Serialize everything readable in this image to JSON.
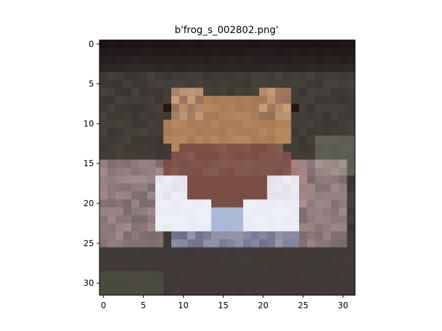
{
  "figure": {
    "title": "b'frog_s_002802.png'"
  },
  "image": {
    "description_name": "frog-photo",
    "grid_size": [
      32,
      32
    ],
    "x_ticks": [
      "0",
      "5",
      "10",
      "15",
      "20",
      "25",
      "30"
    ],
    "y_ticks": [
      "0",
      "5",
      "10",
      "15",
      "20",
      "25",
      "30"
    ],
    "palette": {
      "background_dark": "#1a1214",
      "background_mid": "#3a3530",
      "frog_body": "#7a4e45",
      "frog_head": "#b8885e",
      "frog_highlight": "#eef0f8",
      "frog_belly": "#a9b9d8",
      "ground_dark": "#3e3838"
    }
  }
}
